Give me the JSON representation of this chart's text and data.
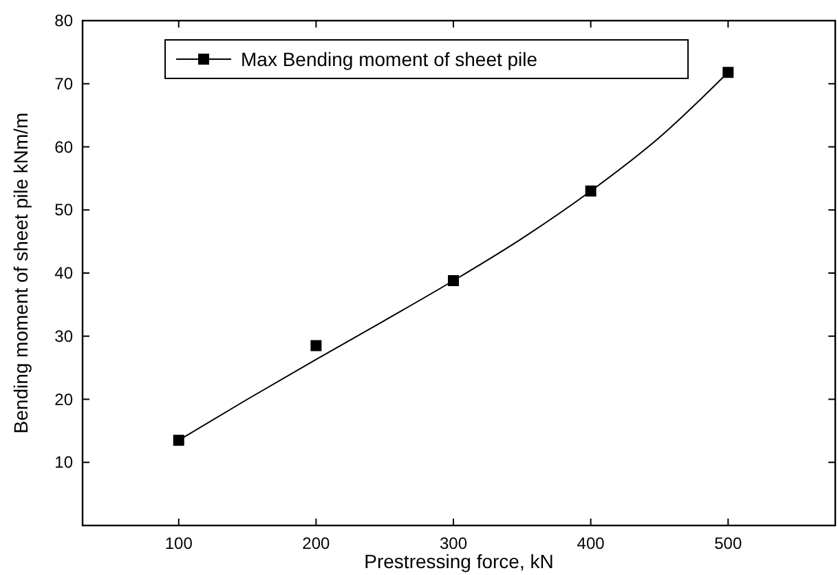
{
  "chart_data": {
    "type": "scatter",
    "xlabel": "Prestressing force, kN",
    "ylabel": "Bending moment of sheet pile kNm/m",
    "x": [
      100,
      200,
      300,
      400,
      500
    ],
    "series": [
      {
        "name": "Max Bending moment of sheet pile",
        "color": "#000000",
        "values": [
          13.5,
          28.5,
          38.8,
          53,
          71.8
        ],
        "marker": "square"
      },
      {
        "type": "line",
        "color": "#000000",
        "x": [
          100,
          150,
          200,
          250,
          300,
          350,
          400,
          450,
          500
        ],
        "values": [
          13.5,
          20,
          26.3,
          32.5,
          38.8,
          45.5,
          53,
          61.5,
          71.8
        ],
        "marker": "none"
      }
    ],
    "xlim": [
      30,
      578
    ],
    "xticks": [
      100,
      200,
      300,
      400,
      500
    ],
    "ylim": [
      0,
      80
    ],
    "yticks": [
      10,
      20,
      30,
      40,
      50,
      60,
      70,
      80
    ],
    "grid": false,
    "legend": "top left"
  }
}
